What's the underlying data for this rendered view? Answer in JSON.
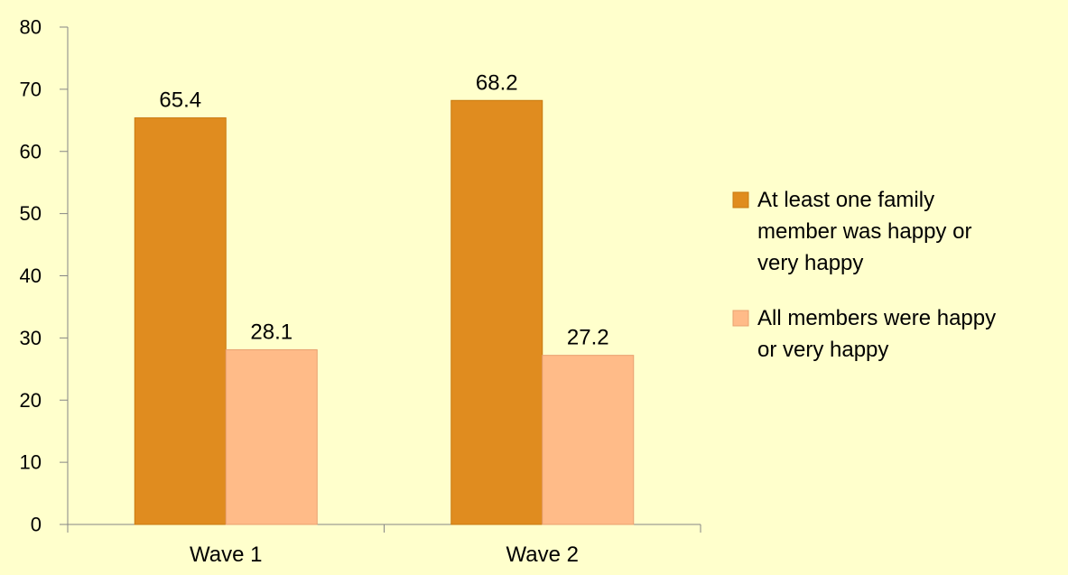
{
  "chart_data": {
    "type": "bar",
    "title": "",
    "xlabel": "",
    "ylabel": "",
    "categories": [
      "Wave 1",
      "Wave 2"
    ],
    "series": [
      {
        "name": "At least one family member was happy or very happy",
        "name_lines": [
          "At least one family",
          "member was happy or",
          "very happy"
        ],
        "values": [
          65.4,
          68.2
        ],
        "color": "#E08C1F"
      },
      {
        "name": "All members were happy or very happy",
        "name_lines": [
          "All members were happy",
          "or very happy"
        ],
        "values": [
          28.1,
          27.2
        ],
        "color": "#FFBB88"
      }
    ],
    "ylim": [
      0,
      80
    ],
    "yticks": [
      0,
      10,
      20,
      30,
      40,
      50,
      60,
      70,
      80
    ],
    "grid": false,
    "legend": "right",
    "background": "#FFFFCC"
  }
}
